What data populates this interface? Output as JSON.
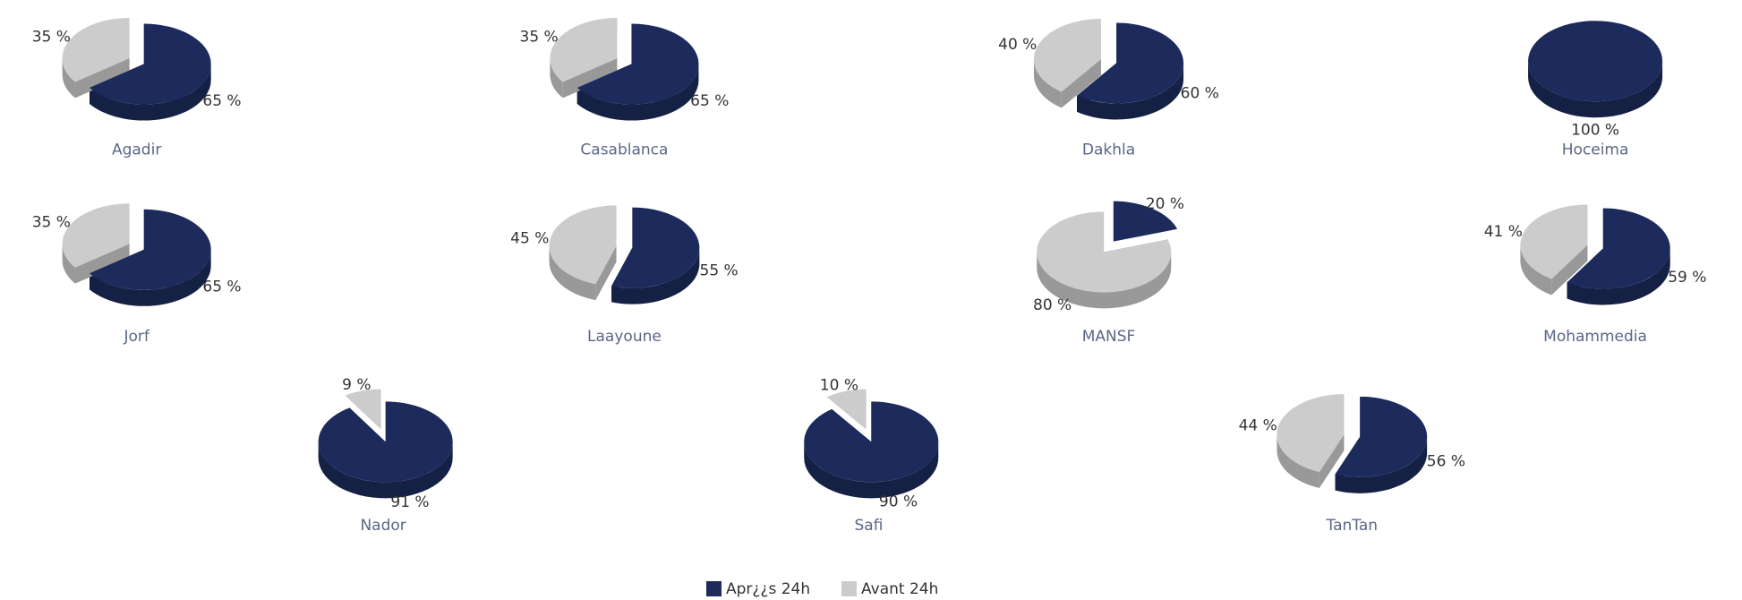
{
  "chart_data": {
    "type": "pie",
    "categories": [
      "Apr¿¿s 24h",
      "Avant 24h"
    ],
    "colors": [
      "#1c2a5c",
      "#cccccc"
    ],
    "pies": [
      {
        "title": "Agadir",
        "values": [
          65,
          35
        ],
        "value_labels": [
          "65 %",
          "35 %"
        ]
      },
      {
        "title": "Casablanca",
        "values": [
          65,
          35
        ],
        "value_labels": [
          "65 %",
          "35 %"
        ]
      },
      {
        "title": "Dakhla",
        "values": [
          60,
          40
        ],
        "value_labels": [
          "60 %",
          "40 %"
        ]
      },
      {
        "title": "Hoceima",
        "values": [
          100
        ],
        "value_labels": [
          "100 %"
        ]
      },
      {
        "title": "Jorf",
        "values": [
          65,
          35
        ],
        "value_labels": [
          "65 %",
          "35 %"
        ]
      },
      {
        "title": "Laayoune",
        "values": [
          55,
          45
        ],
        "value_labels": [
          "55 %",
          "45 %"
        ]
      },
      {
        "title": "MANSF",
        "values": [
          20,
          80
        ],
        "value_labels": [
          "20 %",
          "80 %"
        ]
      },
      {
        "title": "Mohammedia",
        "values": [
          59,
          41
        ],
        "value_labels": [
          "59 %",
          "41 %"
        ]
      },
      {
        "title": "Nador",
        "values": [
          91,
          9
        ],
        "value_labels": [
          "91 %",
          "9 %"
        ]
      },
      {
        "title": "Safi",
        "values": [
          90,
          10
        ],
        "value_labels": [
          "90 %",
          "10 %"
        ]
      },
      {
        "title": "TanTan",
        "values": [
          56,
          44
        ],
        "value_labels": [
          "56 %",
          "44 %"
        ]
      }
    ]
  }
}
